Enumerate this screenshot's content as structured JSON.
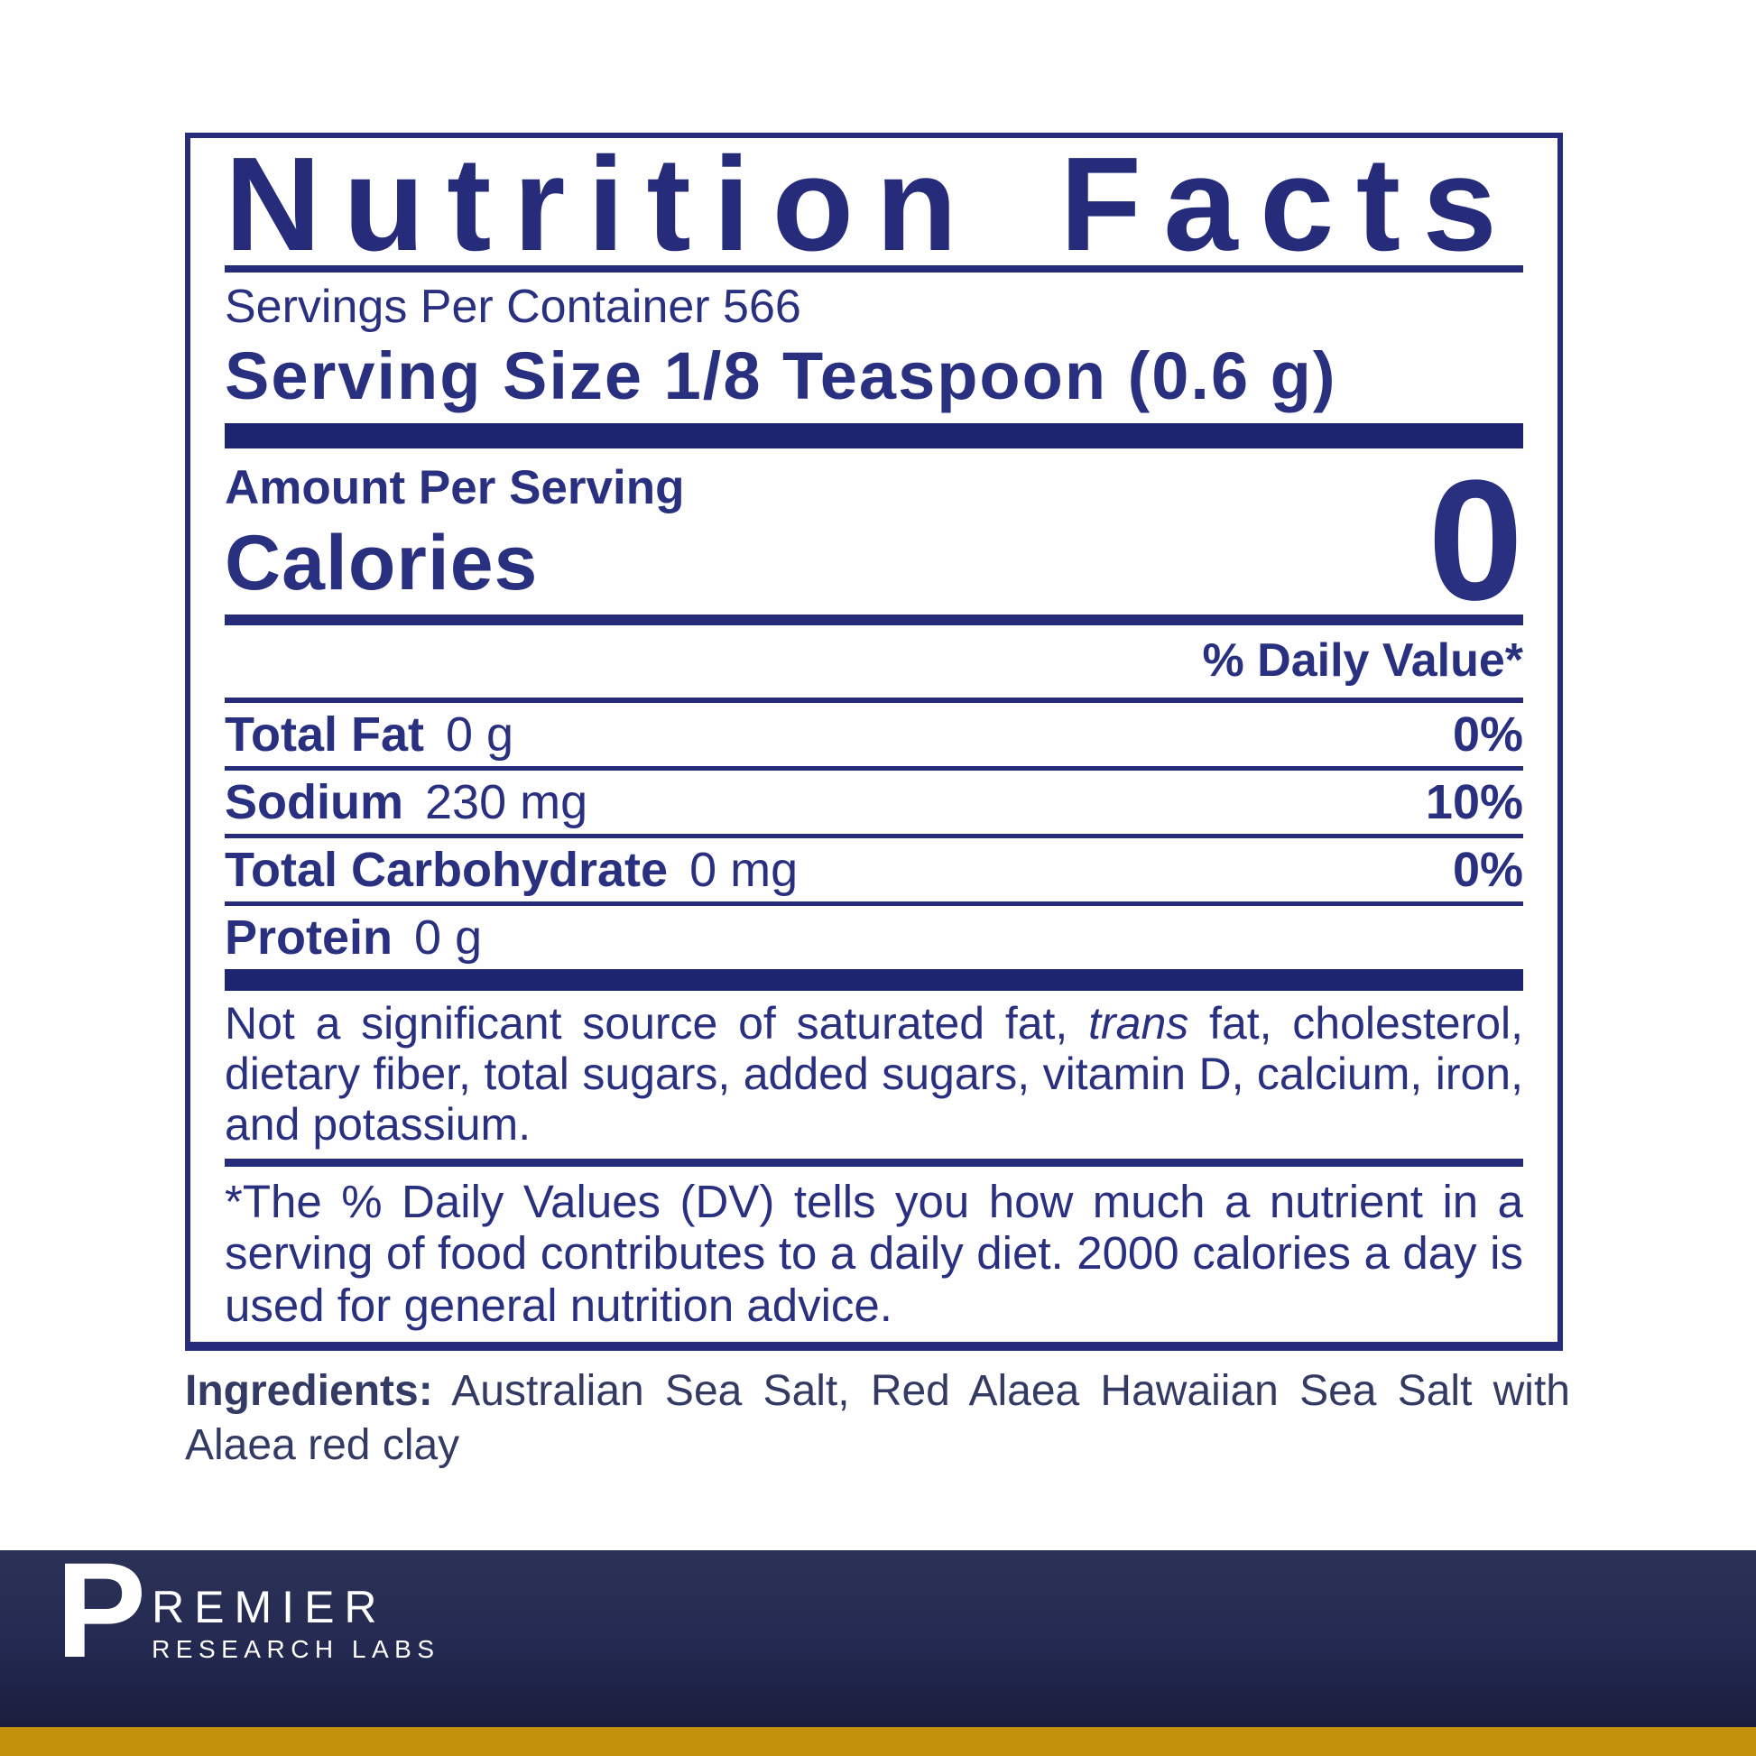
{
  "colors": {
    "label_navy": "#2a3080",
    "bar_navy": "#1e2570",
    "border_navy": "#262c7a",
    "ingredients_text": "#333a63",
    "footer_top": "#2c3257",
    "footer_bottom": "#1a1e3e",
    "gold_strip": "#c3910c",
    "logo_white": "#ffffff"
  },
  "nutrition_facts": {
    "title": "Nutrition Facts",
    "servings_per_container": "Servings Per Container 566",
    "serving_size": "Serving Size 1/8 Teaspoon (0.6 g)",
    "amount_per_serving": "Amount Per Serving",
    "calories_label": "Calories",
    "calories_value": "0",
    "daily_value_header": "% Daily Value*",
    "rows": [
      {
        "name": "Total Fat",
        "amount": "0 g",
        "dv": "0%"
      },
      {
        "name": "Sodium",
        "amount": "230 mg",
        "dv": "10%"
      },
      {
        "name": "Total Carbohydrate",
        "amount": "0 mg",
        "dv": "0%"
      },
      {
        "name": "Protein",
        "amount": "0 g",
        "dv": ""
      }
    ],
    "disclaimer": {
      "prefix": "Not a significant source of saturated fat, ",
      "italic": "trans",
      "suffix": " fat, cholesterol, dietary fiber, total sugars, added sugars, vitamin D, calcium, iron, and potassium."
    },
    "footnote": "*The % Daily Values (DV) tells you how much a nutrient in a serving of food contributes to a daily diet. 2000 calories a day is used for general nutrition advice."
  },
  "ingredients": {
    "label": "Ingredients:",
    "text": " Australian Sea Salt, Red Alaea Hawaiian Sea Salt with Alaea red clay"
  },
  "brand": {
    "initial": "P",
    "name_rest": "REMIER",
    "subtitle": "RESEARCH LABS"
  }
}
